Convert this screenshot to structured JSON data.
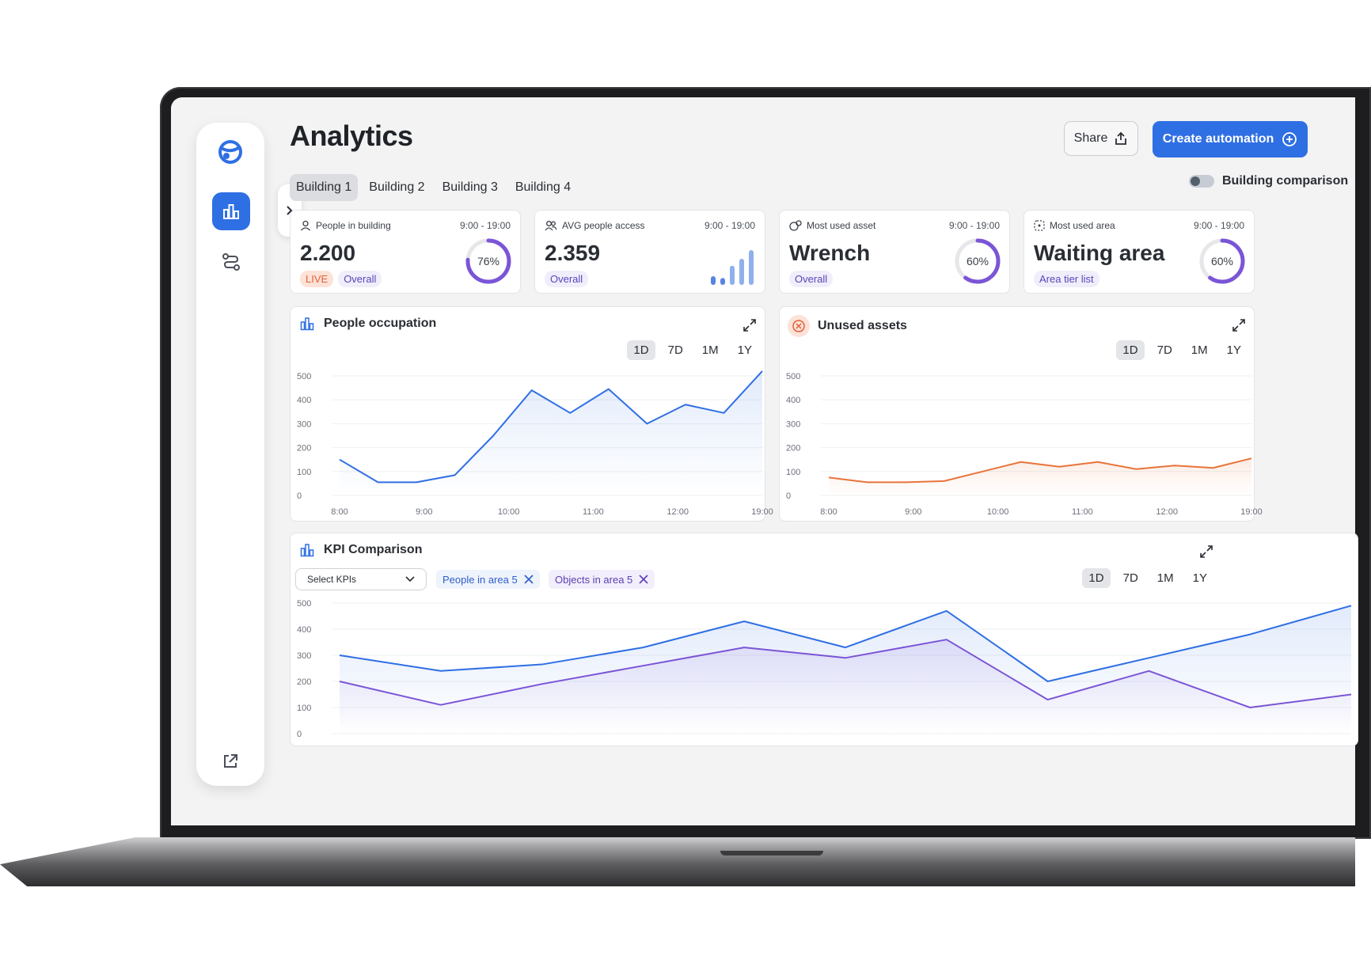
{
  "app": {
    "title": "Analytics"
  },
  "header": {
    "share_label": "Share",
    "create_label": "Create automation",
    "comparison_label": "Building comparison"
  },
  "tabs": [
    {
      "label": "Building 1",
      "active": true
    },
    {
      "label": "Building 2",
      "active": false
    },
    {
      "label": "Building 3",
      "active": false
    },
    {
      "label": "Building 4",
      "active": false
    }
  ],
  "kpis": [
    {
      "label": "People in building",
      "time": "9:00 - 19:00",
      "value": "2.200",
      "badges": [
        "LIVE",
        "Overall"
      ],
      "ring": "76%",
      "ring_fraction": 0.76,
      "icon": "person-icon"
    },
    {
      "label": "AVG people access",
      "time": "9:00 - 19:00",
      "value": "2.359",
      "badges": [
        "Overall"
      ],
      "bars": [
        0.25,
        0.2,
        0.55,
        0.75,
        1.0
      ],
      "icon": "people-icon"
    },
    {
      "label": "Most used asset",
      "time": "9:00 - 19:00",
      "value": "Wrench",
      "badges": [
        "Overall"
      ],
      "ring": "60%",
      "ring_fraction": 0.6,
      "icon": "asset-icon"
    },
    {
      "label": "Most used area",
      "time": "9:00 - 19:00",
      "value": "Waiting area",
      "badges": [
        "Area tier list"
      ],
      "ring": "60%",
      "ring_fraction": 0.6,
      "icon": "area-icon"
    }
  ],
  "ranges": [
    "1D",
    "7D",
    "1M",
    "1Y"
  ],
  "people_occupation": {
    "title": "People occupation"
  },
  "unused_assets": {
    "title": "Unused assets"
  },
  "kpi_comparison": {
    "title": "KPI Comparison",
    "select_label": "Select KPIs",
    "chips": [
      "People in area 5",
      "Objects in area 5"
    ]
  },
  "colors": {
    "accent": "#2f6fe4",
    "orange": "#e8743b",
    "purple": "#7b55d6",
    "live": "#e0623a"
  },
  "chart_data": [
    {
      "type": "area",
      "title": "People occupation",
      "x_ticks": [
        "8:00",
        "9:00",
        "10:00",
        "11:00",
        "12:00",
        "19:00"
      ],
      "y_ticks": [
        "0",
        "100",
        "200",
        "300",
        "400",
        "500"
      ],
      "ylim": [
        0,
        500
      ],
      "series": [
        {
          "color": "#2f6fe4",
          "values": [
            150,
            55,
            55,
            85,
            250,
            440,
            345,
            445,
            300,
            380,
            345,
            520
          ]
        }
      ]
    },
    {
      "type": "area",
      "title": "Unused assets",
      "x_ticks": [
        "8:00",
        "9:00",
        "10:00",
        "11:00",
        "12:00",
        "19:00"
      ],
      "y_ticks": [
        "0",
        "100",
        "200",
        "300",
        "400",
        "500"
      ],
      "ylim": [
        0,
        500
      ],
      "series": [
        {
          "color": "#e8743b",
          "values": [
            75,
            55,
            55,
            60,
            100,
            140,
            120,
            140,
            110,
            125,
            115,
            155
          ]
        }
      ]
    },
    {
      "type": "area",
      "title": "KPI Comparison",
      "y_ticks": [
        "0",
        "100",
        "200",
        "300",
        "400",
        "500"
      ],
      "ylim": [
        0,
        500
      ],
      "series": [
        {
          "name": "People in area 5",
          "color": "#2f6fe4",
          "values": [
            300,
            240,
            265,
            330,
            430,
            330,
            470,
            200,
            290,
            380,
            490
          ]
        },
        {
          "name": "Objects in area 5",
          "color": "#7b55d6",
          "values": [
            200,
            110,
            190,
            260,
            330,
            290,
            360,
            130,
            240,
            100,
            150
          ]
        }
      ]
    }
  ]
}
